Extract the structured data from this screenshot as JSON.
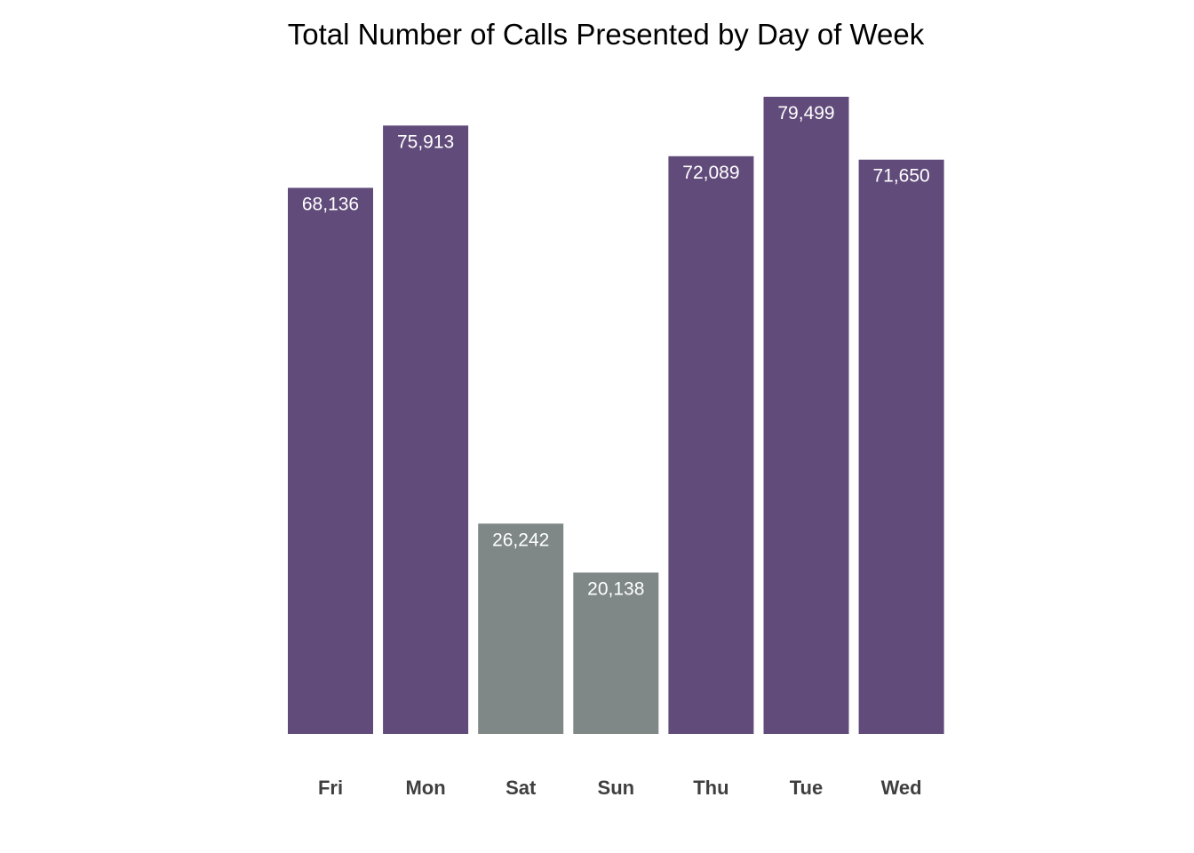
{
  "chart_data": {
    "type": "bar",
    "title": "Total Number of Calls Presented by Day of Week",
    "xlabel": "",
    "ylabel": "",
    "categories": [
      "Fri",
      "Mon",
      "Sat",
      "Sun",
      "Thu",
      "Tue",
      "Wed"
    ],
    "values": [
      68136,
      75913,
      26242,
      20138,
      72089,
      79499,
      71650
    ],
    "value_labels": [
      "68,136",
      "75,913",
      "26,242",
      "20,138",
      "72,089",
      "79,499",
      "71,650"
    ],
    "bar_colors": [
      "#614b7a",
      "#614b7a",
      "#7f8787",
      "#7f8787",
      "#614b7a",
      "#614b7a",
      "#614b7a"
    ],
    "weekday_color": "#614b7a",
    "weekend_color": "#7f8787",
    "ylim": [
      0,
      80000
    ],
    "grid": false,
    "legend": "none"
  }
}
